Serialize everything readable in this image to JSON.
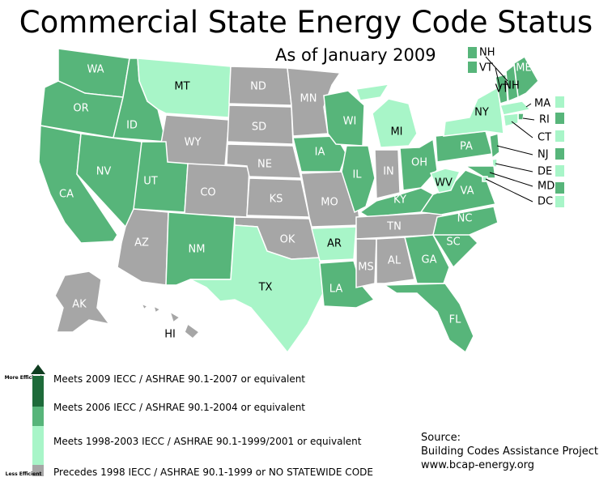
{
  "title": "Commercial State Energy Code Status",
  "subtitle": "As of January 2009",
  "colors": {
    "code_2009": "#1e6b3a",
    "code_2006": "#57b57a",
    "code_1998": "#a8f5c8",
    "code_pre": "#a6a6a6"
  },
  "states": [
    {
      "abbr": "WA",
      "status": "code_2006"
    },
    {
      "abbr": "OR",
      "status": "code_2006"
    },
    {
      "abbr": "CA",
      "status": "code_2006"
    },
    {
      "abbr": "ID",
      "status": "code_2006"
    },
    {
      "abbr": "NV",
      "status": "code_2006"
    },
    {
      "abbr": "MT",
      "status": "code_1998"
    },
    {
      "abbr": "WY",
      "status": "code_pre"
    },
    {
      "abbr": "UT",
      "status": "code_2006"
    },
    {
      "abbr": "CO",
      "status": "code_pre"
    },
    {
      "abbr": "AZ",
      "status": "code_pre"
    },
    {
      "abbr": "NM",
      "status": "code_2006"
    },
    {
      "abbr": "ND",
      "status": "code_pre"
    },
    {
      "abbr": "SD",
      "status": "code_pre"
    },
    {
      "abbr": "NE",
      "status": "code_pre"
    },
    {
      "abbr": "KS",
      "status": "code_pre"
    },
    {
      "abbr": "OK",
      "status": "code_pre"
    },
    {
      "abbr": "TX",
      "status": "code_1998"
    },
    {
      "abbr": "MN",
      "status": "code_pre"
    },
    {
      "abbr": "IA",
      "status": "code_2006"
    },
    {
      "abbr": "MO",
      "status": "code_pre"
    },
    {
      "abbr": "AR",
      "status": "code_1998"
    },
    {
      "abbr": "LA",
      "status": "code_2006"
    },
    {
      "abbr": "WI",
      "status": "code_2006"
    },
    {
      "abbr": "IL",
      "status": "code_2006"
    },
    {
      "abbr": "MI",
      "status": "code_1998"
    },
    {
      "abbr": "IN",
      "status": "code_pre"
    },
    {
      "abbr": "OH",
      "status": "code_2006"
    },
    {
      "abbr": "KY",
      "status": "code_2006"
    },
    {
      "abbr": "TN",
      "status": "code_pre"
    },
    {
      "abbr": "MS",
      "status": "code_pre"
    },
    {
      "abbr": "AL",
      "status": "code_pre"
    },
    {
      "abbr": "GA",
      "status": "code_2006"
    },
    {
      "abbr": "FL",
      "status": "code_2006"
    },
    {
      "abbr": "SC",
      "status": "code_2006"
    },
    {
      "abbr": "NC",
      "status": "code_2006"
    },
    {
      "abbr": "VA",
      "status": "code_2006"
    },
    {
      "abbr": "WV",
      "status": "code_1998"
    },
    {
      "abbr": "PA",
      "status": "code_2006"
    },
    {
      "abbr": "NY",
      "status": "code_1998"
    },
    {
      "abbr": "ME",
      "status": "code_2006"
    },
    {
      "abbr": "NH",
      "status": "code_2006"
    },
    {
      "abbr": "VT",
      "status": "code_2006"
    },
    {
      "abbr": "MA",
      "status": "code_1998"
    },
    {
      "abbr": "RI",
      "status": "code_2006"
    },
    {
      "abbr": "CT",
      "status": "code_1998"
    },
    {
      "abbr": "NJ",
      "status": "code_2006"
    },
    {
      "abbr": "DE",
      "status": "code_1998"
    },
    {
      "abbr": "MD",
      "status": "code_2006"
    },
    {
      "abbr": "DC",
      "status": "code_1998"
    },
    {
      "abbr": "AK",
      "status": "code_pre"
    },
    {
      "abbr": "HI",
      "status": "none"
    }
  ],
  "legend": {
    "more_label": "More Efficient",
    "less_label": "Less Efficient",
    "items": [
      {
        "status": "code_2009",
        "label": "Meets 2009 IECC / ASHRAE 90.1-2007 or equivalent"
      },
      {
        "status": "code_2006",
        "label": "Meets 2006 IECC / ASHRAE 90.1-2004 or equivalent"
      },
      {
        "status": "code_1998",
        "label": "Meets 1998-2003 IECC / ASHRAE 90.1-1999/2001 or equivalent"
      },
      {
        "status": "code_pre",
        "label": "Precedes 1998 IECC / ASHRAE 90.1-1999 or NO STATEWIDE CODE"
      }
    ]
  },
  "source": {
    "heading": "Source:",
    "org": "Building Codes Assistance Project",
    "url": "www.bcap-energy.org"
  }
}
